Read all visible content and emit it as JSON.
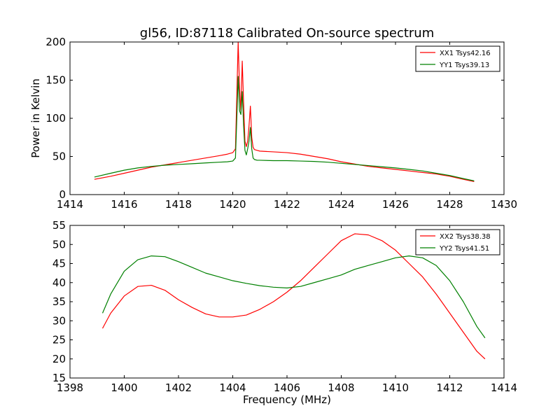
{
  "figure_title": "gl56, ID:87118 Calibrated On-source spectrum",
  "colors": {
    "red": "#ff0000",
    "green": "#008000",
    "axes": "#000000",
    "background": "#ffffff"
  },
  "chart_data": [
    {
      "type": "line",
      "title": "gl56, ID:87118 Calibrated On-source spectrum",
      "xlabel": "",
      "ylabel": "Power in Kelvin",
      "xlim": [
        1414,
        1430
      ],
      "ylim": [
        0,
        200
      ],
      "xticks": [
        "1414",
        "1416",
        "1418",
        "1420",
        "1422",
        "1424",
        "1426",
        "1428",
        "1430"
      ],
      "yticks": [
        "0",
        "50",
        "100",
        "150",
        "200"
      ],
      "legend_position": "top-right",
      "grid": false,
      "series": [
        {
          "name": "XX1 Tsys42.16",
          "color": "#ff0000",
          "x": [
            1414.9,
            1415.5,
            1416,
            1416.5,
            1417,
            1417.5,
            1418,
            1418.5,
            1419,
            1419.5,
            1419.8,
            1420.0,
            1420.1,
            1420.15,
            1420.2,
            1420.25,
            1420.3,
            1420.35,
            1420.4,
            1420.45,
            1420.5,
            1420.55,
            1420.6,
            1420.65,
            1420.7,
            1420.75,
            1420.8,
            1420.9,
            1421.0,
            1421.5,
            1422,
            1422.5,
            1423,
            1423.5,
            1424,
            1424.5,
            1425,
            1425.5,
            1426,
            1426.5,
            1427,
            1427.5,
            1428,
            1428.5,
            1428.9
          ],
          "y": [
            20,
            24,
            28,
            32,
            36,
            39,
            42,
            45,
            48,
            51,
            53,
            55,
            60,
            130,
            200,
            140,
            110,
            175,
            120,
            70,
            63,
            70,
            90,
            116,
            75,
            62,
            59,
            58,
            57,
            56,
            55,
            53,
            50,
            47,
            43,
            40,
            37,
            35,
            33,
            31,
            29,
            27,
            24,
            20,
            17
          ]
        },
        {
          "name": "YY1 Tsys39.13",
          "color": "#008000",
          "x": [
            1414.9,
            1415.5,
            1416,
            1416.5,
            1417,
            1417.5,
            1418,
            1418.5,
            1419,
            1419.5,
            1419.8,
            1420.0,
            1420.1,
            1420.15,
            1420.2,
            1420.25,
            1420.3,
            1420.35,
            1420.4,
            1420.45,
            1420.5,
            1420.55,
            1420.6,
            1420.65,
            1420.7,
            1420.75,
            1420.8,
            1420.9,
            1421.0,
            1421.5,
            1422,
            1422.5,
            1423,
            1423.5,
            1424,
            1424.5,
            1425,
            1425.5,
            1426,
            1426.5,
            1427,
            1427.5,
            1428,
            1428.5,
            1428.9
          ],
          "y": [
            23,
            28,
            32,
            35,
            37,
            38.5,
            39.5,
            40.5,
            41.5,
            42.5,
            43,
            44,
            48,
            100,
            155,
            110,
            105,
            135,
            90,
            58,
            52,
            60,
            70,
            88,
            60,
            48,
            46,
            45,
            45,
            44.5,
            44.5,
            44,
            43.5,
            42.5,
            41,
            39.5,
            38,
            36.5,
            35,
            33,
            31,
            28,
            25,
            21,
            18
          ]
        }
      ]
    },
    {
      "type": "line",
      "title": "",
      "xlabel": "Frequency (MHz)",
      "ylabel": "",
      "xlim": [
        1398,
        1414
      ],
      "ylim": [
        15,
        55
      ],
      "xticks": [
        "1398",
        "1400",
        "1402",
        "1404",
        "1406",
        "1408",
        "1410",
        "1412",
        "1414"
      ],
      "yticks": [
        "15",
        "20",
        "25",
        "30",
        "35",
        "40",
        "45",
        "50",
        "55"
      ],
      "legend_position": "top-right",
      "grid": false,
      "series": [
        {
          "name": "XX2 Tsys38.38",
          "color": "#ff0000",
          "x": [
            1399.2,
            1399.5,
            1400,
            1400.5,
            1401,
            1401.5,
            1402,
            1402.5,
            1403,
            1403.5,
            1404,
            1404.5,
            1405,
            1405.5,
            1406,
            1406.5,
            1407,
            1407.5,
            1408,
            1408.5,
            1409,
            1409.5,
            1410,
            1410.5,
            1411,
            1411.5,
            1412,
            1412.5,
            1413,
            1413.3
          ],
          "y": [
            28,
            32,
            36.5,
            39,
            39.3,
            38,
            35.5,
            33.5,
            31.8,
            31,
            31,
            31.5,
            33,
            35,
            37.5,
            40.5,
            44,
            47.5,
            51,
            52.8,
            52.5,
            51,
            48.5,
            45,
            41.5,
            37,
            32,
            27,
            22,
            20
          ]
        },
        {
          "name": "YY2 Tsys41.51",
          "color": "#008000",
          "x": [
            1399.2,
            1399.5,
            1400,
            1400.5,
            1401,
            1401.5,
            1402,
            1402.5,
            1403,
            1403.5,
            1404,
            1404.5,
            1405,
            1405.5,
            1406,
            1406.5,
            1407,
            1407.5,
            1408,
            1408.5,
            1409,
            1409.5,
            1410,
            1410.5,
            1411,
            1411.5,
            1412,
            1412.5,
            1413,
            1413.3
          ],
          "y": [
            32,
            37,
            43,
            46,
            47,
            46.8,
            45.5,
            44,
            42.5,
            41.5,
            40.5,
            39.8,
            39.2,
            38.8,
            38.6,
            39,
            40,
            41,
            42,
            43.5,
            44.5,
            45.5,
            46.5,
            47,
            46.5,
            44.5,
            40.5,
            35,
            28.5,
            25.5
          ]
        }
      ]
    }
  ]
}
